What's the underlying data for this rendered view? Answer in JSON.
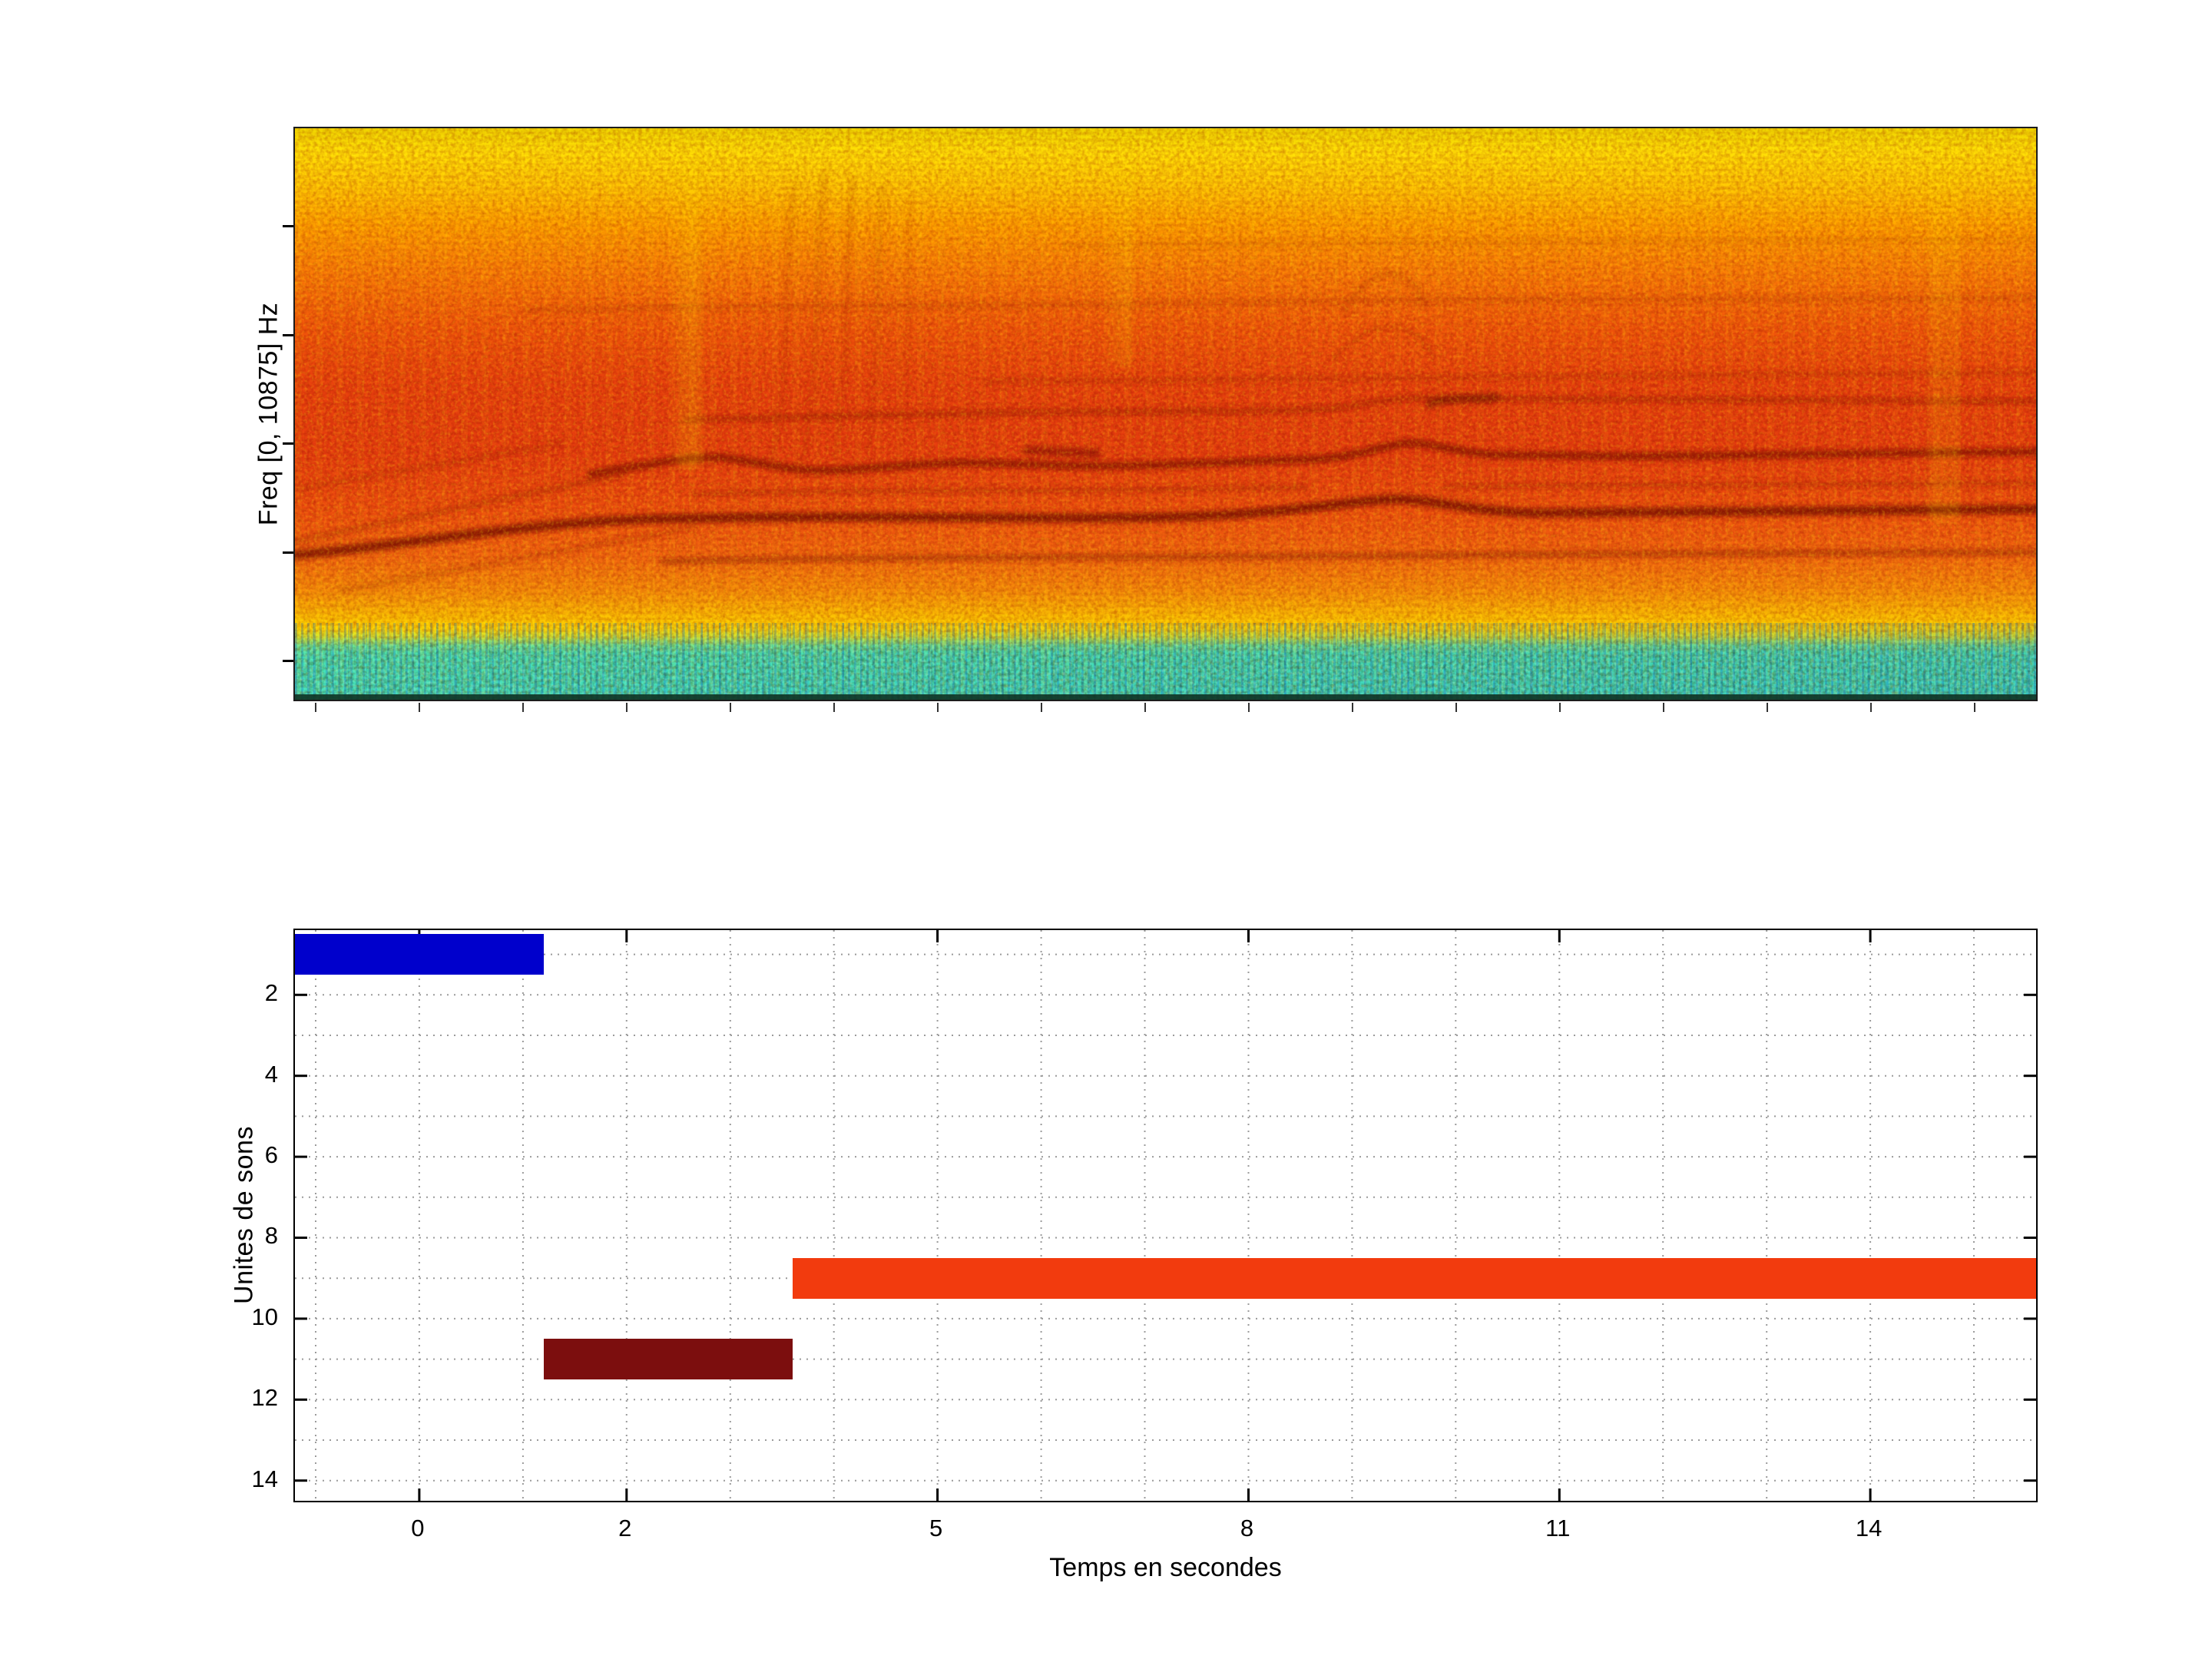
{
  "figure": {
    "background": "#ffffff"
  },
  "spectrogram": {
    "colormap": "jet",
    "colors": {
      "top_yellow": "#ffd900",
      "mid_orange": "#f06a0c",
      "band_red": "#e23c0e",
      "harmonic_dark_red": "#8a1200",
      "low_band_cyan_green": "#45e2b6",
      "bottom_edge_dark": "#113826"
    }
  },
  "chart_data": [
    {
      "type": "heatmap",
      "title": "",
      "xlabel": "",
      "ylabel": "Freq [0, 10875] Hz",
      "y_range_hz": [
        0,
        10875
      ],
      "description": "Audio spectrogram in jet colormap: bright yellow speckled top band, dense orange-red mid frequencies crossed by several wavy dark-red harmonic lines (strongest near the middle of the band), faint rising lines at the left, vertical striation clusters near one fifth and two thirds of the width, and a cyan-green low-energy band along the bottom with fine vertical blue striations and a dark bottom edge."
    },
    {
      "type": "bar",
      "subtype": "horizontal-time-spans",
      "title": "",
      "xlabel": "Temps en secondes",
      "ylabel": "Unites de sons",
      "x_range": [
        -1.2,
        15.6
      ],
      "y_range": [
        0.4,
        14.5
      ],
      "y_inverted": true,
      "grid": "dotted gray lines at every integer on both axes",
      "x_ticks": [
        0,
        2,
        5,
        8,
        11,
        14
      ],
      "x_tick_labels": [
        "0",
        "2",
        "5",
        "8",
        "11",
        "14"
      ],
      "y_ticks": [
        2,
        4,
        6,
        8,
        10,
        12,
        14
      ],
      "y_tick_labels": [
        "2",
        "4",
        "6",
        "8",
        "10",
        "12",
        "14"
      ],
      "segments": [
        {
          "unit": 1,
          "t_start": -1.2,
          "t_end": 1.2,
          "color": "#0000cc",
          "label": "sound unit 1 (blue)"
        },
        {
          "unit": 9,
          "t_start": 3.6,
          "t_end": 15.6,
          "color": "#f23b0e",
          "label": "sound unit 9 (orange-red)"
        },
        {
          "unit": 11,
          "t_start": 1.2,
          "t_end": 3.6,
          "color": "#7c0e0e",
          "label": "sound unit 11 (dark red)"
        }
      ]
    }
  ]
}
